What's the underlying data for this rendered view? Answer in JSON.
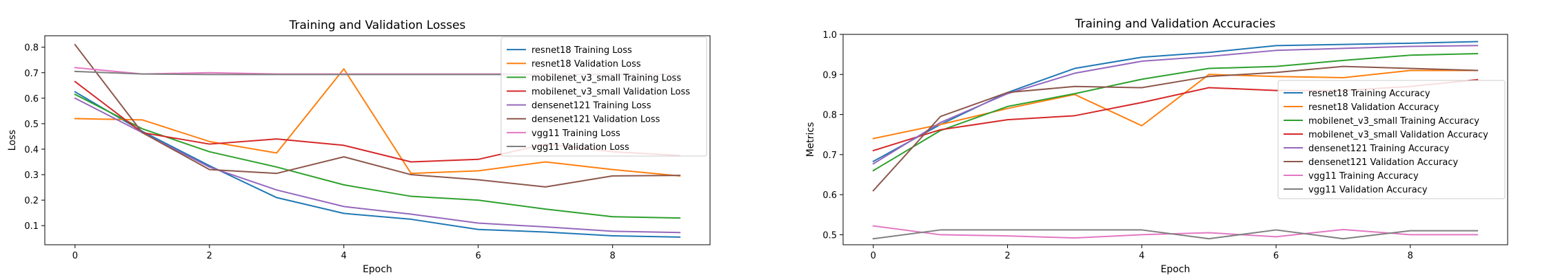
{
  "chart_data": [
    {
      "type": "line",
      "title": "Training and Validation Losses",
      "xlabel": "Epoch",
      "ylabel": "Loss",
      "xlim": [
        -0.45,
        9.45
      ],
      "ylim": [
        0.025,
        0.845
      ],
      "xticks": [
        0,
        2,
        4,
        6,
        8
      ],
      "yticks": [
        0.1,
        0.2,
        0.3,
        0.4,
        0.5,
        0.6,
        0.7,
        0.8
      ],
      "legend_position": "top-right",
      "grid": false,
      "x": [
        0,
        1,
        2,
        3,
        4,
        5,
        6,
        7,
        8,
        9
      ],
      "series": [
        {
          "name": "resnet18 Training Loss",
          "color": "#1f77b4",
          "values": [
            0.625,
            0.47,
            0.335,
            0.21,
            0.148,
            0.125,
            0.085,
            0.075,
            0.06,
            0.055
          ]
        },
        {
          "name": "resnet18 Validation Loss",
          "color": "#ff7f0e",
          "values": [
            0.52,
            0.515,
            0.43,
            0.385,
            0.715,
            0.305,
            0.315,
            0.35,
            0.32,
            0.295
          ]
        },
        {
          "name": "mobilenet_v3_small Training Loss",
          "color": "#2ca02c",
          "values": [
            0.615,
            0.48,
            0.39,
            0.33,
            0.26,
            0.215,
            0.2,
            0.165,
            0.135,
            0.13
          ]
        },
        {
          "name": "mobilenet_v3_small Validation Loss",
          "color": "#d62728",
          "values": [
            0.665,
            0.465,
            0.42,
            0.44,
            0.415,
            0.35,
            0.36,
            0.42,
            0.39,
            0.375
          ]
        },
        {
          "name": "densenet121 Training Loss",
          "color": "#9467bd",
          "values": [
            0.6,
            0.465,
            0.33,
            0.24,
            0.175,
            0.145,
            0.11,
            0.095,
            0.078,
            0.073
          ]
        },
        {
          "name": "densenet121 Validation Loss",
          "color": "#8c564b",
          "values": [
            0.81,
            0.465,
            0.32,
            0.305,
            0.37,
            0.3,
            0.28,
            0.252,
            0.295,
            0.297
          ]
        },
        {
          "name": "vgg11 Training Loss",
          "color": "#e377c2",
          "values": [
            0.72,
            0.695,
            0.7,
            0.695,
            0.695,
            0.695,
            0.695,
            0.695,
            0.695,
            0.695
          ]
        },
        {
          "name": "vgg11 Validation Loss",
          "color": "#7f7f7f",
          "values": [
            0.705,
            0.695,
            0.693,
            0.693,
            0.693,
            0.693,
            0.693,
            0.693,
            0.693,
            0.693
          ]
        }
      ]
    },
    {
      "type": "line",
      "title": "Training and Validation Accuracies",
      "xlabel": "Epoch",
      "ylabel": "Metrics",
      "xlim": [
        -0.45,
        9.45
      ],
      "ylim": [
        0.475,
        1.0
      ],
      "xticks": [
        0,
        2,
        4,
        6,
        8
      ],
      "yticks": [
        0.5,
        0.6,
        0.7,
        0.8,
        0.9,
        1.0
      ],
      "legend_position": "center-right",
      "grid": false,
      "x": [
        0,
        1,
        2,
        3,
        4,
        5,
        6,
        7,
        8,
        9
      ],
      "series": [
        {
          "name": "resnet18 Training Accuracy",
          "color": "#1f77b4",
          "values": [
            0.683,
            0.775,
            0.855,
            0.915,
            0.943,
            0.955,
            0.972,
            0.975,
            0.978,
            0.982
          ]
        },
        {
          "name": "resnet18 Validation Accuracy",
          "color": "#ff7f0e",
          "values": [
            0.74,
            0.775,
            0.815,
            0.85,
            0.772,
            0.9,
            0.895,
            0.892,
            0.91,
            0.91
          ]
        },
        {
          "name": "mobilenet_v3_small Training Accuracy",
          "color": "#2ca02c",
          "values": [
            0.66,
            0.76,
            0.82,
            0.852,
            0.888,
            0.915,
            0.92,
            0.935,
            0.948,
            0.952
          ]
        },
        {
          "name": "mobilenet_v3_small Validation Accuracy",
          "color": "#d62728",
          "values": [
            0.71,
            0.762,
            0.787,
            0.797,
            0.83,
            0.867,
            0.86,
            0.86,
            0.87,
            0.887
          ]
        },
        {
          "name": "densenet121 Training Accuracy",
          "color": "#9467bd",
          "values": [
            0.677,
            0.78,
            0.852,
            0.903,
            0.933,
            0.945,
            0.96,
            0.965,
            0.97,
            0.972
          ]
        },
        {
          "name": "densenet121 Validation Accuracy",
          "color": "#8c564b",
          "values": [
            0.61,
            0.795,
            0.855,
            0.87,
            0.867,
            0.895,
            0.905,
            0.92,
            0.915,
            0.91
          ]
        },
        {
          "name": "vgg11 Training Accuracy",
          "color": "#e377c2",
          "values": [
            0.522,
            0.5,
            0.497,
            0.492,
            0.5,
            0.505,
            0.495,
            0.513,
            0.5,
            0.5
          ]
        },
        {
          "name": "vgg11 Validation Accuracy",
          "color": "#7f7f7f",
          "values": [
            0.49,
            0.512,
            0.512,
            0.512,
            0.512,
            0.49,
            0.512,
            0.49,
            0.51,
            0.51
          ]
        }
      ]
    }
  ]
}
